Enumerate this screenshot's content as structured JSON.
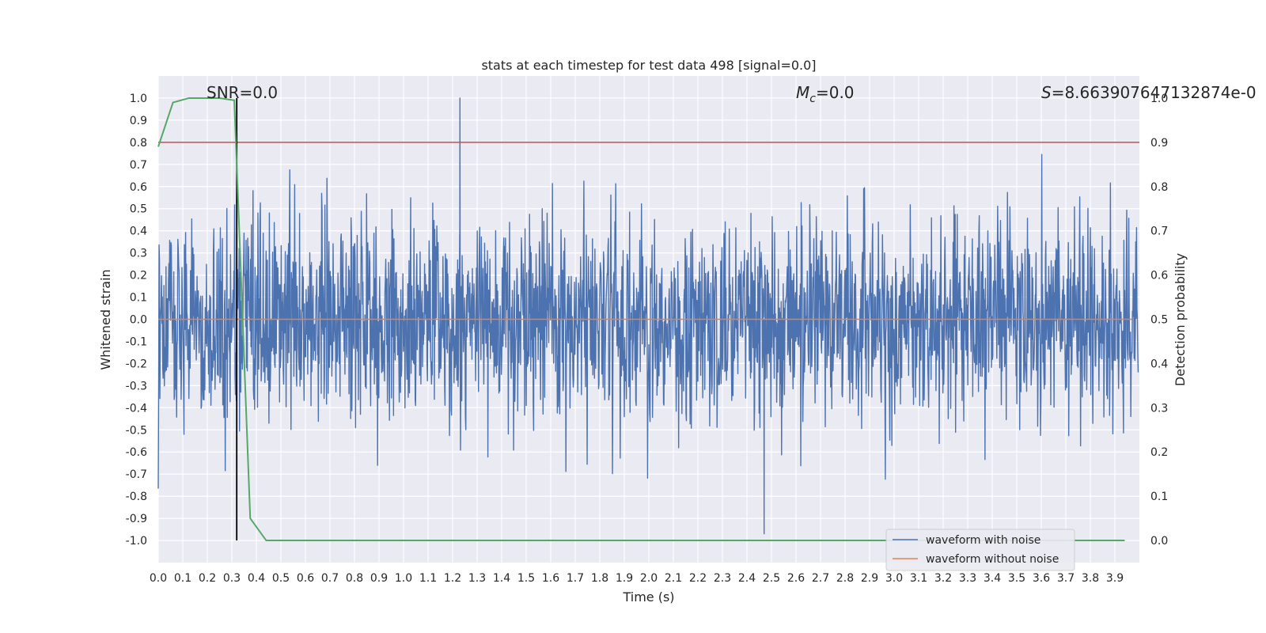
{
  "chart_data": {
    "type": "line",
    "title": "stats at each timestep for test data 498 [signal=0.0]",
    "xlabel": "Time (s)",
    "ylabel": "Whitened strain",
    "y2label": "Detection probability",
    "xlim": [
      0.0,
      4.0
    ],
    "ylim": [
      -1.1,
      1.1
    ],
    "y2lim": [
      -0.05,
      1.05
    ],
    "x_ticks": [
      "0.0",
      "0.1",
      "0.2",
      "0.3",
      "0.4",
      "0.5",
      "0.6",
      "0.7",
      "0.8",
      "0.9",
      "1.0",
      "1.1",
      "1.2",
      "1.3",
      "1.4",
      "1.5",
      "1.6",
      "1.7",
      "1.8",
      "1.9",
      "2.0",
      "2.1",
      "2.2",
      "2.3",
      "2.4",
      "2.5",
      "2.6",
      "2.7",
      "2.8",
      "2.9",
      "3.0",
      "3.1",
      "3.2",
      "3.3",
      "3.4",
      "3.5",
      "3.6",
      "3.7",
      "3.8",
      "3.9"
    ],
    "y_ticks": [
      "1.0",
      "0.9",
      "0.8",
      "0.7",
      "0.6",
      "0.5",
      "0.4",
      "0.3",
      "0.2",
      "0.1",
      "0.0",
      "-0.1",
      "-0.2",
      "-0.3",
      "-0.4",
      "-0.5",
      "-0.6",
      "-0.7",
      "-0.8",
      "-0.9",
      "-1.0"
    ],
    "y2_ticks": [
      "1.0",
      "0.9",
      "0.8",
      "0.7",
      "0.6",
      "0.5",
      "0.4",
      "0.3",
      "0.2",
      "0.1",
      "0.0"
    ],
    "annotations": {
      "snr": "SNR=0.0",
      "mc_symbol": "M",
      "mc_sub": "c",
      "mc_value": "=0.0",
      "s_symbol": "S",
      "s_value": "=8.663907647132874e-0"
    },
    "threshold": {
      "value": 0.9,
      "axis": "y2",
      "color": "#c44e52"
    },
    "marker_line": {
      "x": 0.32,
      "y_from": -1.0,
      "y_to": 1.0,
      "color": "#000000"
    },
    "series": [
      {
        "name": "waveform with noise",
        "color": "#4c72b0",
        "axis": "y",
        "noise_amplitude_range": [
          -0.97,
          1.0
        ],
        "note_points": {
          "x": [
            1.23,
            2.47
          ],
          "y": [
            1.0,
            -0.97
          ]
        }
      },
      {
        "name": "waveform without noise",
        "color": "#dd8452",
        "axis": "y",
        "x": [
          0.0,
          3.97
        ],
        "y": [
          0.0,
          0.0
        ]
      },
      {
        "name": "detection probability",
        "color": "#55a868",
        "axis": "y2",
        "x": [
          0.0,
          0.06,
          0.125,
          0.19,
          0.25,
          0.31,
          0.375,
          0.44,
          0.5,
          0.56,
          3.94
        ],
        "y": [
          0.89,
          0.99,
          1.0,
          1.0,
          1.0,
          0.995,
          0.05,
          0.0,
          0.0,
          0.0,
          0.0
        ]
      }
    ],
    "legend": {
      "placement": "lower right",
      "entries": [
        "waveform with noise",
        "waveform without noise"
      ]
    },
    "grid": true
  }
}
